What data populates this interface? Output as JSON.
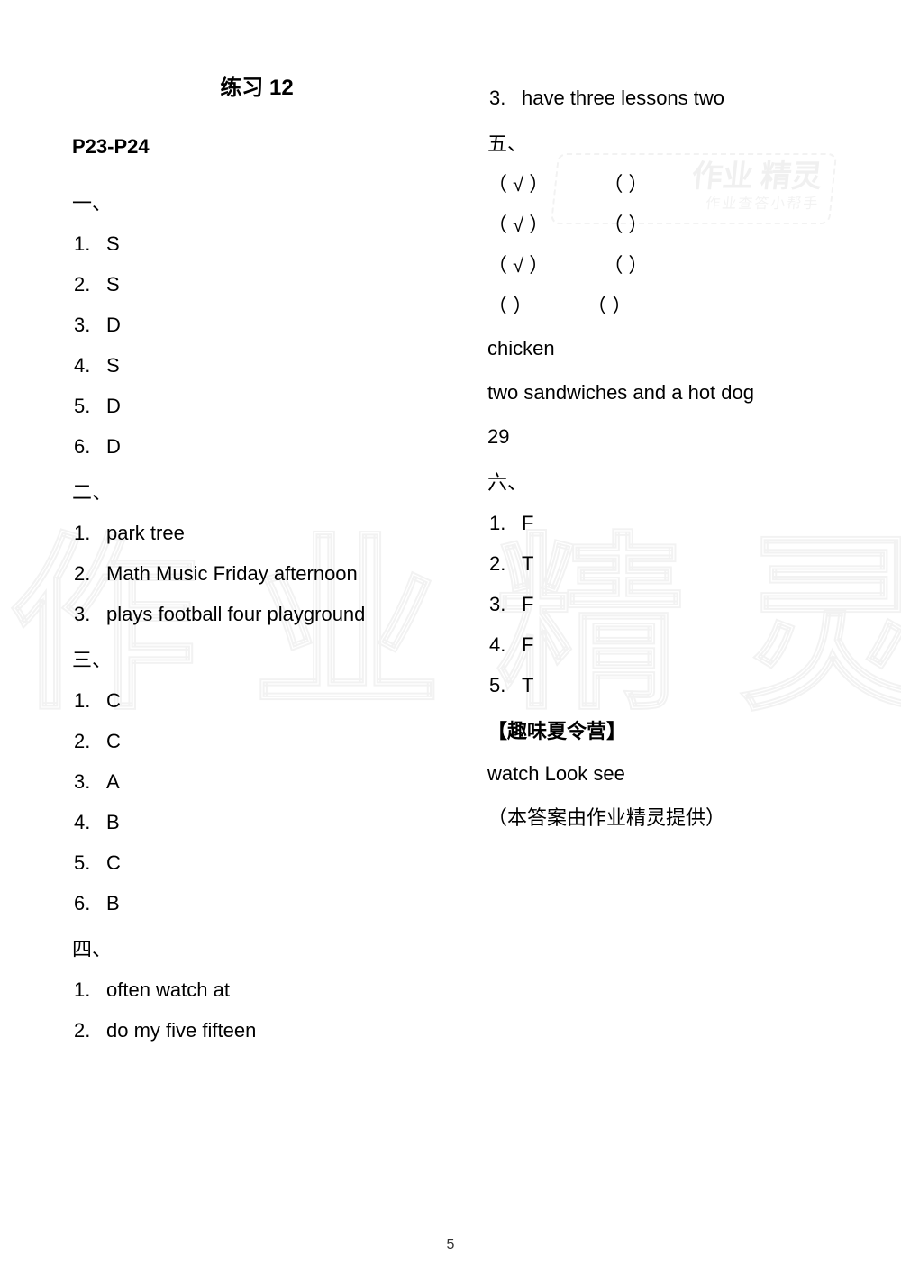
{
  "page_number": "5",
  "watermarks": {
    "big": "作业精灵",
    "small_line1": "作业\n精灵",
    "small_line2": "作业查答小帮手"
  },
  "left": {
    "title": "练习 12",
    "page_ref": "P23-P24",
    "section1": {
      "head": "一、",
      "items": [
        "S",
        "S",
        "D",
        "S",
        "D",
        "D"
      ]
    },
    "section2": {
      "head": "二、",
      "items": [
        "park tree",
        "Math Music Friday afternoon",
        "plays football four playground"
      ]
    },
    "section3": {
      "head": "三、",
      "items": [
        "C",
        "C",
        "A",
        "B",
        "C",
        "B"
      ]
    },
    "section4": {
      "head": "四、",
      "items": [
        "often watch at",
        "do my five fifteen"
      ]
    }
  },
  "right": {
    "cont4_item3": "have three lessons two",
    "section5": {
      "head": "五、",
      "grid": [
        [
          "（ √ ）",
          "（   ）"
        ],
        [
          "（ √ ）",
          "（   ）"
        ],
        [
          "（ √ ）",
          "（   ）"
        ],
        [
          "（   ）",
          "（   ）"
        ]
      ],
      "extra": [
        "chicken",
        "two sandwiches and a hot dog",
        "29"
      ]
    },
    "section6": {
      "head": "六、",
      "items": [
        "F",
        "T",
        "F",
        "F",
        "T"
      ]
    },
    "camp": {
      "title": "【趣味夏令营】",
      "answer": "watch Look see"
    },
    "attribution": "（本答案由作业精灵提供）"
  }
}
